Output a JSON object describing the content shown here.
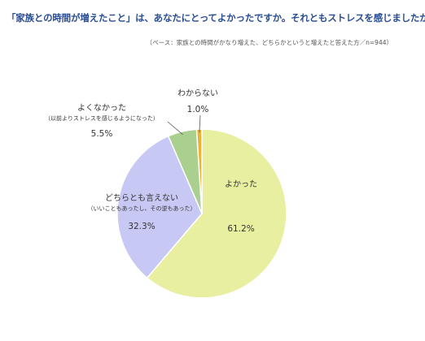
{
  "title": "「家族との時間が増えたこと」は、あなたにとってよかったですか。それともストレスを感じましたか？",
  "base_note": "（ベース：家族との時間がかなり増えた、どちらかというと増えたと答えた方／n=944）",
  "chart_data": {
    "type": "pie",
    "title": "「家族との時間が増えたこと」は、あなたにとってよかったですか。それともストレスを感じましたか？",
    "slices": [
      {
        "label": "よかった",
        "sublabel": "",
        "value": 61.2,
        "value_label": "61.2%",
        "color": "#e8efa0"
      },
      {
        "label": "どちらとも言えない",
        "sublabel": "（いいこともあったし、その逆もあった）",
        "value": 32.3,
        "value_label": "32.3%",
        "color": "#c8c8f5"
      },
      {
        "label": "よくなかった",
        "sublabel": "（以前よりストレスを感じるようになった）",
        "value": 5.5,
        "value_label": "5.5%",
        "color": "#a9d08e"
      },
      {
        "label": "わからない",
        "sublabel": "",
        "value": 1.0,
        "value_label": "1.0%",
        "color": "#f0b030"
      }
    ],
    "start": "12 o'clock",
    "direction": "clockwise",
    "legend": "none"
  }
}
